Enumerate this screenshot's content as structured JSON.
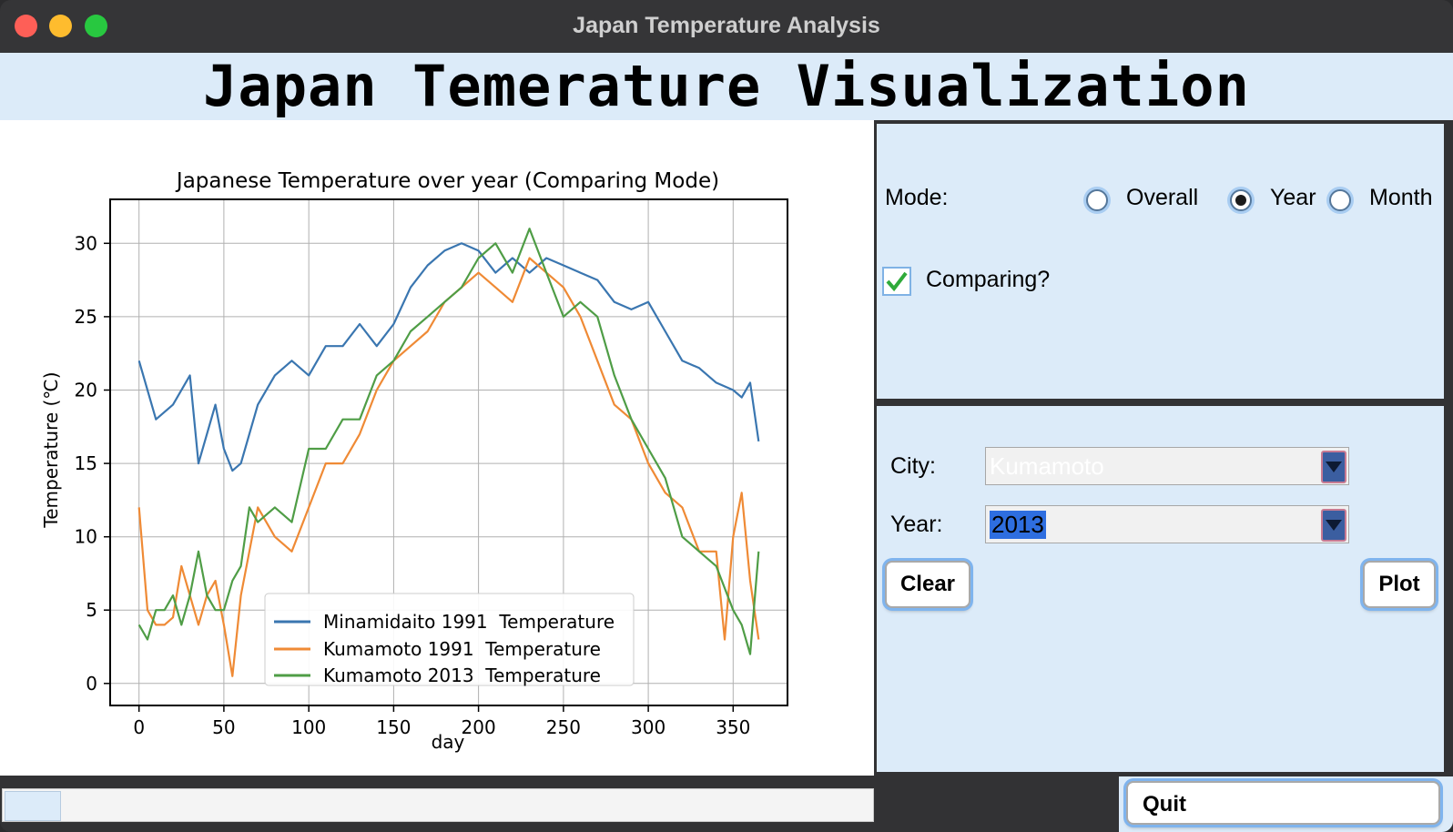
{
  "window": {
    "title": "Japan Temperature Analysis"
  },
  "header": {
    "title": "Japan Temerature Visualization"
  },
  "controls": {
    "mode_label": "Mode:",
    "modes": [
      {
        "label": "Overall",
        "selected": false
      },
      {
        "label": "Year",
        "selected": true
      },
      {
        "label": "Month",
        "selected": false
      }
    ],
    "comparing_label": "Comparing?",
    "comparing_checked": true,
    "city_label": "City:",
    "city_value": "Kumamoto",
    "year_label": "Year:",
    "year_value": "2013",
    "clear_label": "Clear",
    "plot_label": "Plot",
    "quit_label": "Quit"
  },
  "colors": {
    "header_bg": "#dcebf9",
    "accent": "#7fb4ee",
    "series1": "#3a76b0",
    "series2": "#ef8a35",
    "series3": "#4f9d46"
  },
  "chart_data": {
    "type": "line",
    "title": "Japanese Temperature over year (Comparing Mode)",
    "xlabel": "day",
    "ylabel": "Temperature (℃)",
    "xlim": [
      -17,
      382
    ],
    "ylim": [
      -1.5,
      33
    ],
    "x_ticks": [
      0,
      50,
      100,
      150,
      200,
      250,
      300,
      350
    ],
    "y_ticks": [
      0,
      5,
      10,
      15,
      20,
      25,
      30
    ],
    "grid": true,
    "legend_position": "lower center",
    "series": [
      {
        "name": "Minamidaito 1991  Temperature",
        "color": "#3a76b0",
        "x": [
          0,
          10,
          20,
          30,
          35,
          45,
          50,
          55,
          60,
          70,
          80,
          90,
          100,
          110,
          120,
          130,
          140,
          150,
          160,
          170,
          180,
          190,
          200,
          210,
          220,
          230,
          240,
          250,
          260,
          270,
          280,
          290,
          300,
          310,
          320,
          330,
          340,
          350,
          355,
          360,
          365
        ],
        "y": [
          22,
          18,
          19,
          21,
          15,
          19,
          16,
          14.5,
          15,
          19,
          21,
          22,
          21,
          23,
          23,
          24.5,
          23,
          24.5,
          27,
          28.5,
          29.5,
          30,
          29.5,
          28,
          29,
          28,
          29,
          28.5,
          28,
          27.5,
          26,
          25.5,
          26,
          24,
          22,
          21.5,
          20.5,
          20,
          19.5,
          20.5,
          16.5
        ]
      },
      {
        "name": "Kumamoto 1991  Temperature",
        "color": "#ef8a35",
        "x": [
          0,
          5,
          10,
          15,
          20,
          25,
          30,
          35,
          40,
          45,
          50,
          55,
          60,
          65,
          70,
          80,
          90,
          100,
          110,
          120,
          130,
          140,
          150,
          160,
          170,
          180,
          190,
          200,
          210,
          220,
          230,
          240,
          250,
          260,
          270,
          280,
          290,
          300,
          310,
          320,
          330,
          340,
          345,
          350,
          355,
          360,
          365
        ],
        "y": [
          12,
          5,
          4,
          4,
          4.5,
          8,
          6,
          4,
          6,
          7,
          4,
          0.5,
          6,
          9,
          12,
          10,
          9,
          12,
          15,
          15,
          17,
          20,
          22,
          23,
          24,
          26,
          27,
          28,
          27,
          26,
          29,
          28,
          27,
          25,
          22,
          19,
          18,
          15,
          13,
          12,
          9,
          9,
          3,
          10,
          13,
          7,
          3
        ]
      },
      {
        "name": "Kumamoto 2013  Temperature",
        "color": "#4f9d46",
        "x": [
          0,
          5,
          10,
          15,
          20,
          25,
          30,
          35,
          40,
          45,
          50,
          55,
          60,
          65,
          70,
          80,
          90,
          100,
          110,
          120,
          130,
          140,
          150,
          160,
          170,
          180,
          190,
          200,
          210,
          220,
          230,
          240,
          250,
          260,
          270,
          280,
          290,
          300,
          310,
          320,
          330,
          340,
          350,
          355,
          360,
          365
        ],
        "y": [
          4,
          3,
          5,
          5,
          6,
          4,
          6,
          9,
          6,
          5,
          5,
          7,
          8,
          12,
          11,
          12,
          11,
          16,
          16,
          18,
          18,
          21,
          22,
          24,
          25,
          26,
          27,
          29,
          30,
          28,
          31,
          28,
          25,
          26,
          25,
          21,
          18,
          16,
          14,
          10,
          9,
          8,
          5,
          4,
          2,
          9
        ]
      }
    ]
  }
}
